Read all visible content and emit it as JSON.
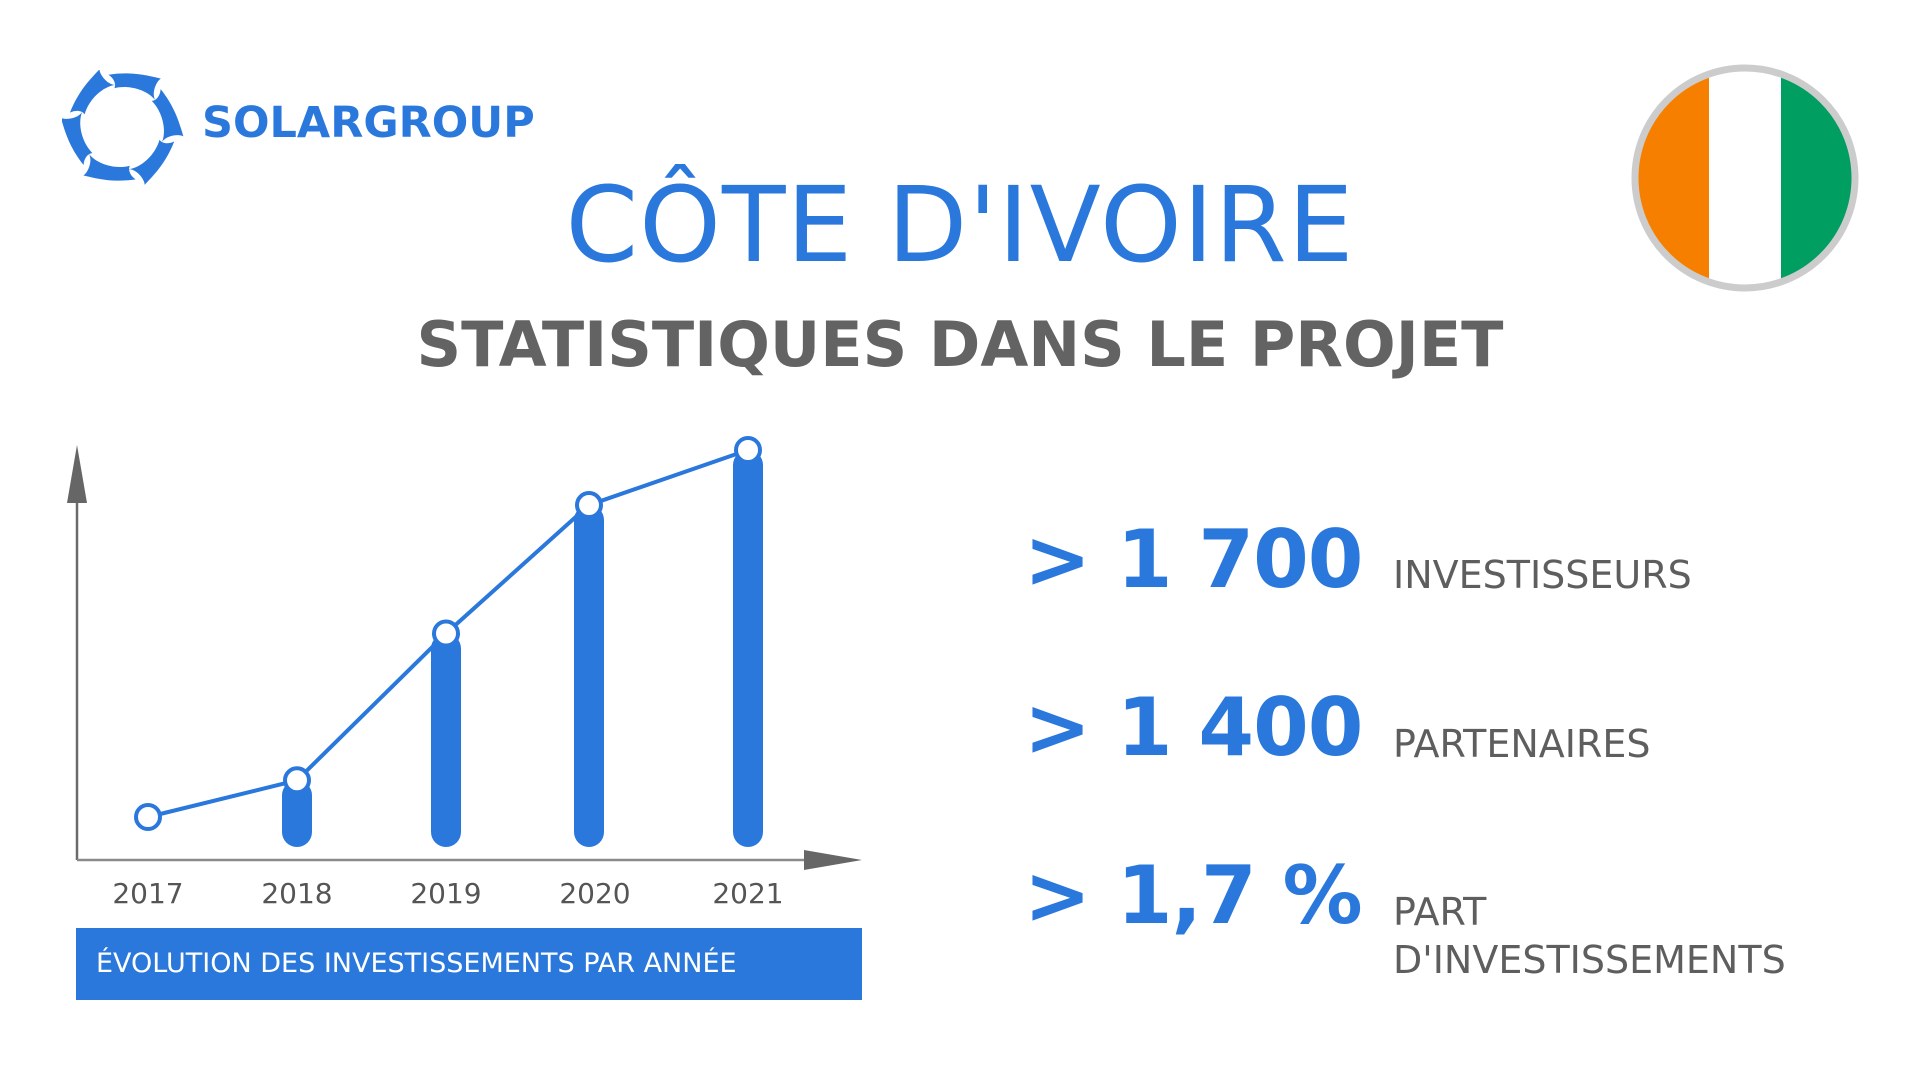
{
  "brand": {
    "name": "SOLARGROUP",
    "color": "#2a78dc"
  },
  "header": {
    "title": "CÔTE D'IVOIRE",
    "subtitle": "STATISTIQUES DANS LE PROJET"
  },
  "flag": {
    "icon": "cote-divoire-flag-icon",
    "colors": [
      "#f77f00",
      "#ffffff",
      "#009e60"
    ],
    "border": "#cccccc"
  },
  "chart_data": {
    "type": "bar",
    "title": "ÉVOLUTION DES INVESTISSEMENTS PAR ANNÉE",
    "categories": [
      "2017",
      "2018",
      "2019",
      "2020",
      "2021"
    ],
    "values": [
      0,
      10,
      50,
      85,
      100
    ],
    "line_overlay": true,
    "xlabel": "",
    "ylabel": "",
    "ylim": [
      0,
      110
    ],
    "grid": false,
    "axis_tick_values_shown": false,
    "colors": {
      "bar": "#2a78dc",
      "line": "#2a78dc",
      "axis": "#666666"
    }
  },
  "stats": [
    {
      "value": "> 1 700",
      "label_lines": [
        "INVESTISSEURS"
      ]
    },
    {
      "value": "> 1 400",
      "label_lines": [
        "PARTENAIRES"
      ]
    },
    {
      "value": "> 1,7 %",
      "label_lines": [
        "PART",
        "D'INVESTISSEMENTS"
      ]
    }
  ]
}
